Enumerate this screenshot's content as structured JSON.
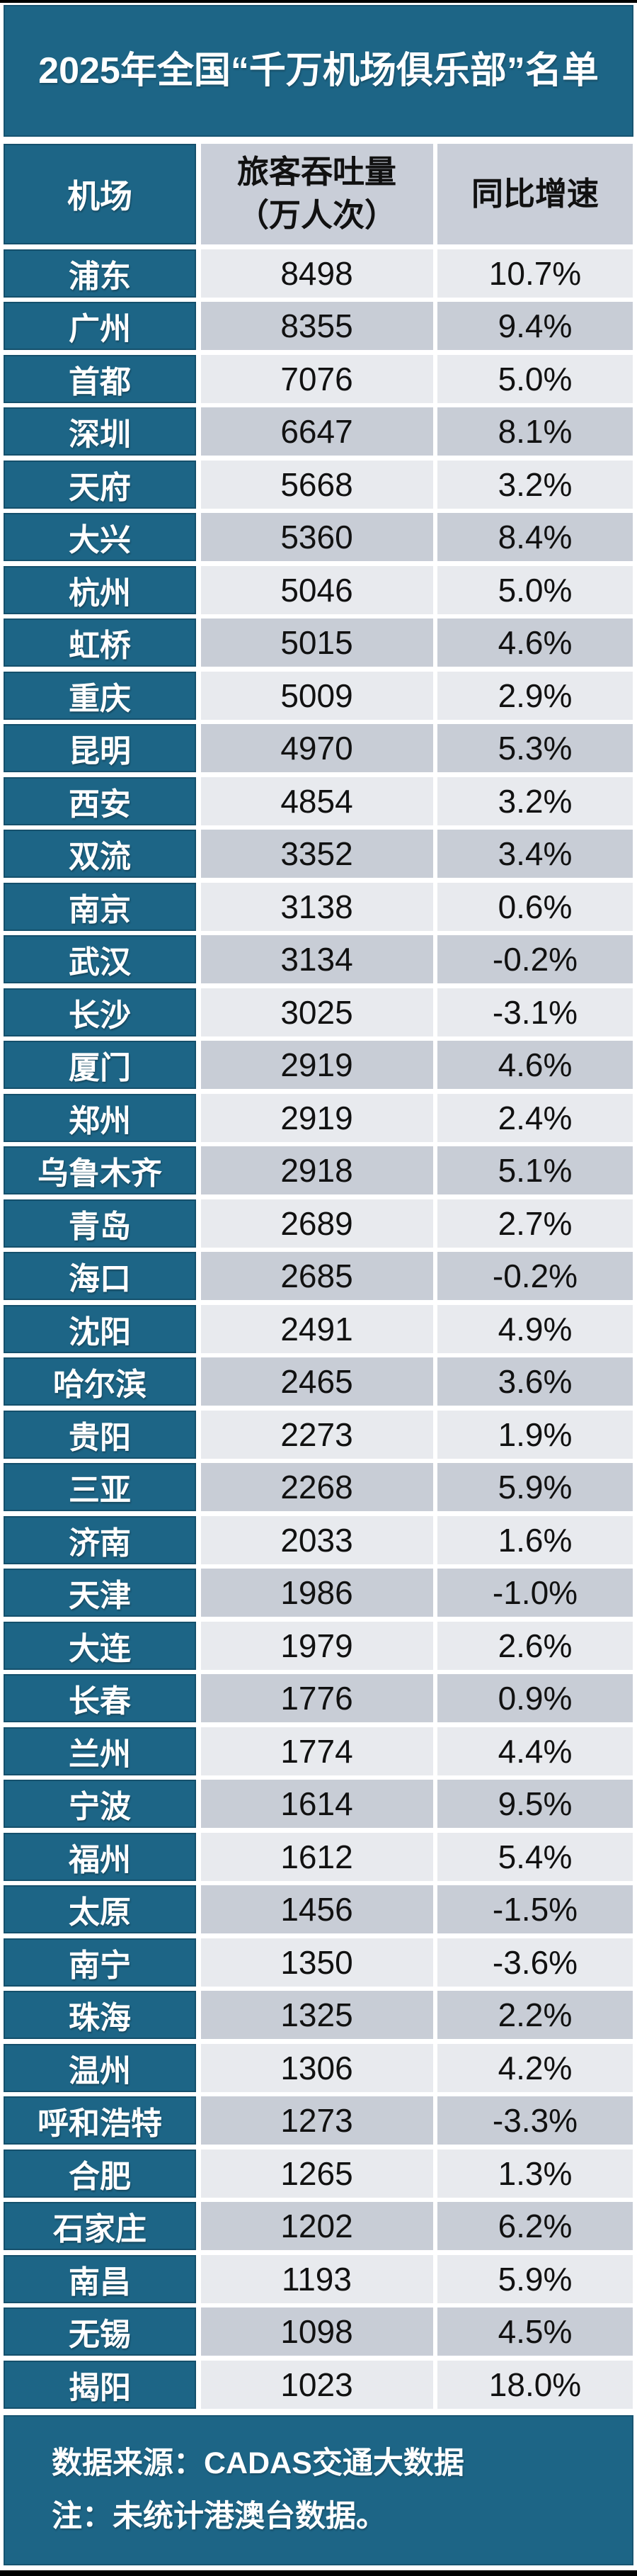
{
  "page": {
    "title": "2025年全国“千万机场俱乐部”名单"
  },
  "table": {
    "headers": {
      "airport": "机场",
      "throughput_line1": "旅客吞吐量",
      "throughput_line2": "（万人次）",
      "growth": "同比增速"
    }
  },
  "footer": {
    "source": "数据来源：CADAS交通大数据",
    "note": "注：未统计港澳台数据。"
  },
  "colors": {
    "teal": "#1d6586",
    "row_light": "#e8eaee",
    "row_dark": "#c8cdd6",
    "header_gray": "#c9ced8",
    "frame_black": "#000000",
    "text_light": "#ffffff",
    "text_dark": "#111111"
  },
  "chart_data": {
    "type": "table",
    "title": "2025年全国“千万机场俱乐部”名单",
    "columns": [
      "机场",
      "旅客吞吐量（万人次）",
      "同比增速"
    ],
    "rows": [
      [
        "浦东",
        8498,
        10.7
      ],
      [
        "广州",
        8355,
        9.4
      ],
      [
        "首都",
        7076,
        5.0
      ],
      [
        "深圳",
        6647,
        8.1
      ],
      [
        "天府",
        5668,
        3.2
      ],
      [
        "大兴",
        5360,
        8.4
      ],
      [
        "杭州",
        5046,
        5.0
      ],
      [
        "虹桥",
        5015,
        4.6
      ],
      [
        "重庆",
        5009,
        2.9
      ],
      [
        "昆明",
        4970,
        5.3
      ],
      [
        "西安",
        4854,
        3.2
      ],
      [
        "双流",
        3352,
        3.4
      ],
      [
        "南京",
        3138,
        0.6
      ],
      [
        "武汉",
        3134,
        -0.2
      ],
      [
        "长沙",
        3025,
        -3.1
      ],
      [
        "厦门",
        2919,
        4.6
      ],
      [
        "郑州",
        2919,
        2.4
      ],
      [
        "乌鲁木齐",
        2918,
        5.1
      ],
      [
        "青岛",
        2689,
        2.7
      ],
      [
        "海口",
        2685,
        -0.2
      ],
      [
        "沈阳",
        2491,
        4.9
      ],
      [
        "哈尔滨",
        2465,
        3.6
      ],
      [
        "贵阳",
        2273,
        1.9
      ],
      [
        "三亚",
        2268,
        5.9
      ],
      [
        "济南",
        2033,
        1.6
      ],
      [
        "天津",
        1986,
        -1.0
      ],
      [
        "大连",
        1979,
        2.6
      ],
      [
        "长春",
        1776,
        0.9
      ],
      [
        "兰州",
        1774,
        4.4
      ],
      [
        "宁波",
        1614,
        9.5
      ],
      [
        "福州",
        1612,
        5.4
      ],
      [
        "太原",
        1456,
        -1.5
      ],
      [
        "南宁",
        1350,
        -3.6
      ],
      [
        "珠海",
        1325,
        2.2
      ],
      [
        "温州",
        1306,
        4.2
      ],
      [
        "呼和浩特",
        1273,
        -3.3
      ],
      [
        "合肥",
        1265,
        1.3
      ],
      [
        "石家庄",
        1202,
        6.2
      ],
      [
        "南昌",
        1193,
        5.9
      ],
      [
        "无锡",
        1098,
        4.5
      ],
      [
        "揭阳",
        1023,
        18.0
      ]
    ],
    "source": "数据来源：CADAS交通大数据",
    "note": "注：未统计港澳台数据。",
    "layout": {
      "first_column_style": "teal-white-bold",
      "row_striping": "light/dark alternating starting light",
      "grid": "white gaps between cells"
    }
  }
}
